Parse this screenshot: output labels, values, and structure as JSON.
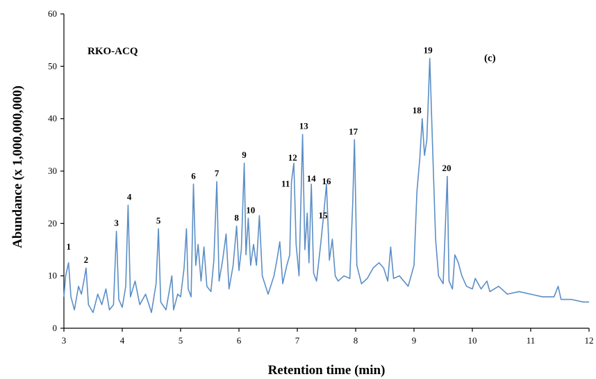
{
  "chart_data": {
    "type": "line",
    "sample_label": "RKO-ACQ",
    "panel_label": "(c)",
    "xlabel": "Retention time  (min)",
    "ylabel": "Abundance (x 1,000,000,000)",
    "xlim": [
      3,
      12
    ],
    "ylim": [
      0,
      60
    ],
    "xticks": [
      3,
      4,
      5,
      6,
      7,
      8,
      9,
      10,
      11,
      12
    ],
    "yticks": [
      0,
      10,
      20,
      30,
      40,
      50,
      60
    ],
    "grid": false,
    "line_color": "#5b8ec6",
    "series": [
      {
        "values": [
          [
            3.0,
            6.0
          ],
          [
            3.03,
            10.0
          ],
          [
            3.08,
            12.5
          ],
          [
            3.12,
            6.0
          ],
          [
            3.18,
            3.5
          ],
          [
            3.25,
            8.0
          ],
          [
            3.3,
            6.5
          ],
          [
            3.35,
            9.5
          ],
          [
            3.38,
            11.5
          ],
          [
            3.42,
            4.5
          ],
          [
            3.5,
            3.0
          ],
          [
            3.58,
            6.5
          ],
          [
            3.65,
            4.5
          ],
          [
            3.72,
            7.5
          ],
          [
            3.78,
            3.5
          ],
          [
            3.85,
            4.5
          ],
          [
            3.9,
            18.5
          ],
          [
            3.94,
            5.5
          ],
          [
            4.0,
            4.0
          ],
          [
            4.06,
            8.0
          ],
          [
            4.1,
            23.5
          ],
          [
            4.14,
            6.0
          ],
          [
            4.22,
            9.0
          ],
          [
            4.3,
            4.5
          ],
          [
            4.4,
            6.5
          ],
          [
            4.5,
            3.0
          ],
          [
            4.58,
            8.5
          ],
          [
            4.62,
            19.0
          ],
          [
            4.66,
            5.0
          ],
          [
            4.75,
            3.5
          ],
          [
            4.85,
            10.0
          ],
          [
            4.88,
            3.5
          ],
          [
            4.95,
            6.5
          ],
          [
            5.0,
            6.0
          ],
          [
            5.06,
            11.5
          ],
          [
            5.1,
            19.0
          ],
          [
            5.13,
            7.5
          ],
          [
            5.18,
            6.0
          ],
          [
            5.22,
            27.5
          ],
          [
            5.26,
            12.0
          ],
          [
            5.3,
            16.0
          ],
          [
            5.35,
            9.0
          ],
          [
            5.4,
            15.5
          ],
          [
            5.45,
            8.0
          ],
          [
            5.52,
            7.0
          ],
          [
            5.57,
            13.0
          ],
          [
            5.62,
            28.0
          ],
          [
            5.66,
            9.0
          ],
          [
            5.72,
            13.0
          ],
          [
            5.78,
            18.0
          ],
          [
            5.83,
            7.5
          ],
          [
            5.9,
            12.0
          ],
          [
            5.96,
            19.5
          ],
          [
            6.0,
            11.0
          ],
          [
            6.04,
            15.0
          ],
          [
            6.09,
            31.5
          ],
          [
            6.12,
            14.0
          ],
          [
            6.16,
            21.0
          ],
          [
            6.2,
            12.0
          ],
          [
            6.25,
            16.0
          ],
          [
            6.3,
            12.0
          ],
          [
            6.35,
            21.5
          ],
          [
            6.4,
            10.0
          ],
          [
            6.5,
            6.5
          ],
          [
            6.6,
            10.0
          ],
          [
            6.65,
            13.0
          ],
          [
            6.7,
            16.5
          ],
          [
            6.75,
            8.5
          ],
          [
            6.82,
            12.0
          ],
          [
            6.87,
            14.0
          ],
          [
            6.9,
            28.0
          ],
          [
            6.94,
            31.5
          ],
          [
            6.98,
            16.0
          ],
          [
            7.03,
            10.0
          ],
          [
            7.09,
            37.0
          ],
          [
            7.13,
            15.0
          ],
          [
            7.17,
            22.0
          ],
          [
            7.2,
            12.5
          ],
          [
            7.24,
            27.5
          ],
          [
            7.28,
            10.5
          ],
          [
            7.33,
            9.0
          ],
          [
            7.4,
            16.0
          ],
          [
            7.45,
            21.5
          ],
          [
            7.5,
            27.5
          ],
          [
            7.55,
            13.0
          ],
          [
            7.6,
            17.0
          ],
          [
            7.65,
            10.0
          ],
          [
            7.7,
            9.0
          ],
          [
            7.8,
            10.0
          ],
          [
            7.9,
            9.5
          ],
          [
            7.95,
            24.0
          ],
          [
            7.98,
            36.0
          ],
          [
            8.02,
            12.0
          ],
          [
            8.1,
            8.5
          ],
          [
            8.2,
            9.5
          ],
          [
            8.3,
            11.5
          ],
          [
            8.4,
            12.5
          ],
          [
            8.48,
            11.5
          ],
          [
            8.55,
            9.0
          ],
          [
            8.6,
            15.5
          ],
          [
            8.65,
            9.5
          ],
          [
            8.75,
            10.0
          ],
          [
            8.9,
            8.0
          ],
          [
            9.0,
            12.0
          ],
          [
            9.05,
            26.0
          ],
          [
            9.1,
            32.5
          ],
          [
            9.14,
            40.0
          ],
          [
            9.18,
            33.0
          ],
          [
            9.22,
            36.0
          ],
          [
            9.27,
            51.5
          ],
          [
            9.32,
            34.0
          ],
          [
            9.37,
            17.0
          ],
          [
            9.42,
            10.0
          ],
          [
            9.5,
            8.5
          ],
          [
            9.57,
            29.0
          ],
          [
            9.6,
            9.0
          ],
          [
            9.66,
            7.5
          ],
          [
            9.7,
            14.0
          ],
          [
            9.76,
            12.5
          ],
          [
            9.82,
            10.0
          ],
          [
            9.9,
            8.0
          ],
          [
            10.0,
            7.5
          ],
          [
            10.05,
            9.5
          ],
          [
            10.15,
            7.5
          ],
          [
            10.25,
            9.0
          ],
          [
            10.3,
            7.0
          ],
          [
            10.45,
            8.0
          ],
          [
            10.6,
            6.5
          ],
          [
            10.8,
            7.0
          ],
          [
            11.0,
            6.5
          ],
          [
            11.2,
            6.0
          ],
          [
            11.4,
            6.0
          ],
          [
            11.47,
            8.0
          ],
          [
            11.52,
            5.5
          ],
          [
            11.7,
            5.5
          ],
          [
            11.9,
            5.0
          ],
          [
            12.0,
            5.0
          ]
        ]
      }
    ],
    "peak_labels": [
      {
        "label": "1",
        "x": 3.08,
        "y": 15.0
      },
      {
        "label": "2",
        "x": 3.38,
        "y": 12.5
      },
      {
        "label": "3",
        "x": 3.9,
        "y": 19.5
      },
      {
        "label": "4",
        "x": 4.12,
        "y": 24.5
      },
      {
        "label": "5",
        "x": 4.62,
        "y": 20.0
      },
      {
        "label": "6",
        "x": 5.22,
        "y": 28.5
      },
      {
        "label": "7",
        "x": 5.62,
        "y": 29.0
      },
      {
        "label": "8",
        "x": 5.96,
        "y": 20.5
      },
      {
        "label": "9",
        "x": 6.09,
        "y": 32.5
      },
      {
        "label": "10",
        "x": 6.2,
        "y": 22.0
      },
      {
        "label": "11",
        "x": 6.8,
        "y": 27.0
      },
      {
        "label": "12",
        "x": 6.92,
        "y": 32.0
      },
      {
        "label": "13",
        "x": 7.11,
        "y": 38.0
      },
      {
        "label": "14",
        "x": 7.24,
        "y": 28.0
      },
      {
        "label": "15",
        "x": 7.44,
        "y": 21.0
      },
      {
        "label": "16",
        "x": 7.5,
        "y": 27.5
      },
      {
        "label": "17",
        "x": 7.96,
        "y": 37.0
      },
      {
        "label": "18",
        "x": 9.05,
        "y": 41.0
      },
      {
        "label": "19",
        "x": 9.24,
        "y": 52.5
      },
      {
        "label": "20",
        "x": 9.56,
        "y": 30.0
      }
    ]
  }
}
